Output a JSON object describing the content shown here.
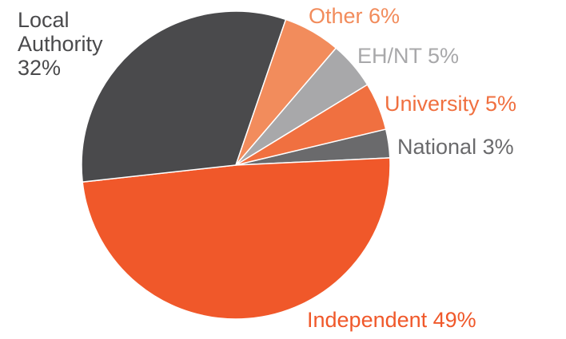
{
  "chart_data": {
    "type": "pie",
    "title": "",
    "slices": [
      {
        "label": "Independent",
        "value": 49,
        "value_label": "49%",
        "color": "#f0582a",
        "label_color": "#f0582a"
      },
      {
        "label": "Local Authority",
        "value": 32,
        "value_label": "32%",
        "color": "#4a4a4c",
        "label_color": "#4a4a4c"
      },
      {
        "label": "Other",
        "value": 6,
        "value_label": "6%",
        "color": "#f28c5c",
        "label_color": "#f28c5c"
      },
      {
        "label": "EH/NT",
        "value": 5,
        "value_label": "5%",
        "color": "#a8a8aa",
        "label_color": "#a8a8aa"
      },
      {
        "label": "University",
        "value": 5,
        "value_label": "5%",
        "color": "#f07040",
        "label_color": "#f07040"
      },
      {
        "label": "National",
        "value": 3,
        "value_label": "3%",
        "color": "#6a6a6c",
        "label_color": "#6a6a6c"
      }
    ],
    "label_strings": {
      "independent": "Independent 49%",
      "local_line1": "Local",
      "local_line2": "Authority",
      "local_line3": "32%",
      "other": "Other 6%",
      "ehnt": "EH/NT 5%",
      "university": "University 5%",
      "national": "National 3%"
    }
  }
}
